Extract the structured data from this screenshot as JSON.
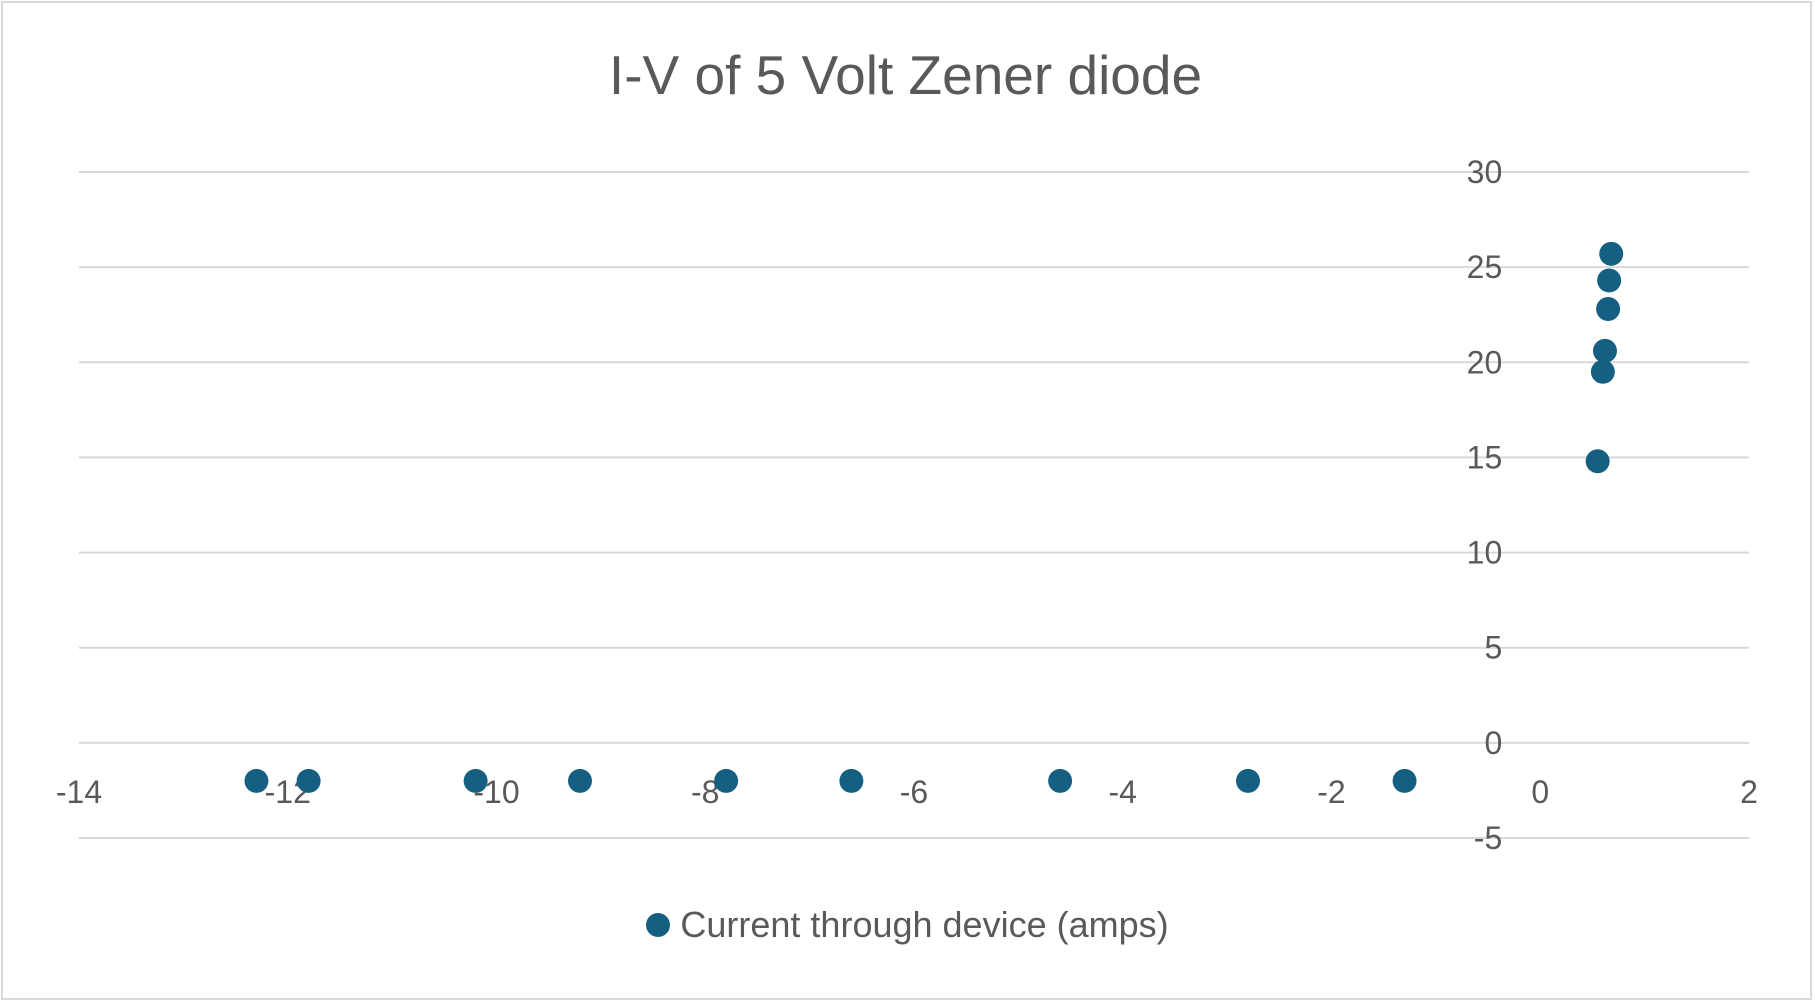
{
  "chart_data": {
    "type": "scatter",
    "title": "I-V of 5 Volt Zener diode",
    "xlabel": "",
    "ylabel": "",
    "xlim": [
      -14,
      2
    ],
    "ylim": [
      -5,
      30
    ],
    "x_ticks": [
      -14,
      -12,
      -10,
      -8,
      -6,
      -4,
      -2,
      0,
      2
    ],
    "y_ticks": [
      -5,
      0,
      5,
      10,
      15,
      20,
      25,
      30
    ],
    "x_tick_labels": [
      "-14",
      "-12",
      "-10",
      "-8",
      "-6",
      "-4",
      "-2",
      "0",
      "2"
    ],
    "y_tick_labels": [
      "-5",
      "0",
      "5",
      "10",
      "15",
      "20",
      "25",
      "30"
    ],
    "grid": "horizontal",
    "legend_position": "bottom",
    "series": [
      {
        "name": "Current through device (amps)",
        "color": "#156082",
        "points": [
          {
            "x": -12.3,
            "y": -2
          },
          {
            "x": -11.8,
            "y": -2
          },
          {
            "x": -10.2,
            "y": -2
          },
          {
            "x": -9.2,
            "y": -2
          },
          {
            "x": -7.8,
            "y": -2
          },
          {
            "x": -6.6,
            "y": -2
          },
          {
            "x": -4.6,
            "y": -2
          },
          {
            "x": -2.8,
            "y": -2
          },
          {
            "x": -1.3,
            "y": -2
          },
          {
            "x": 0.55,
            "y": 14.8
          },
          {
            "x": 0.6,
            "y": 19.5
          },
          {
            "x": 0.62,
            "y": 20.6
          },
          {
            "x": 0.65,
            "y": 22.8
          },
          {
            "x": 0.66,
            "y": 24.3
          },
          {
            "x": 0.68,
            "y": 25.7
          }
        ]
      }
    ]
  }
}
